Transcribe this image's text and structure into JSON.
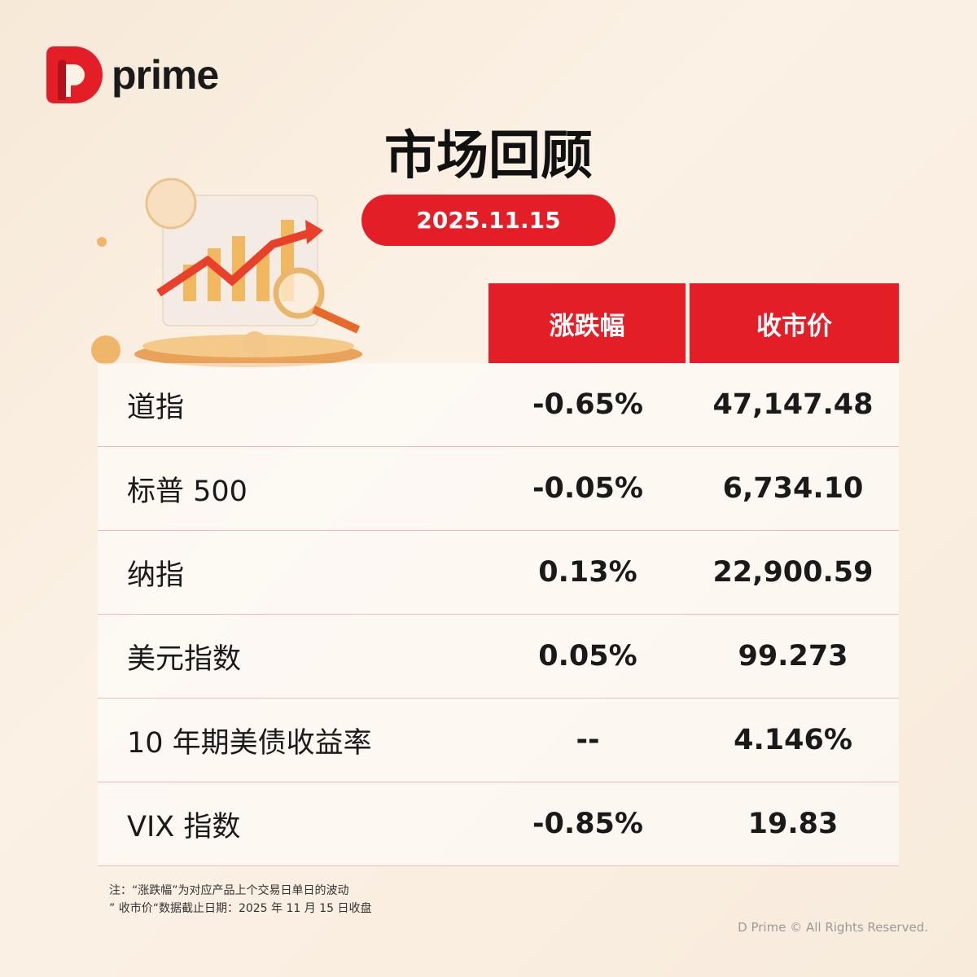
{
  "brand": {
    "name": "prime",
    "primary": "#e41e26"
  },
  "title": "市场回顾",
  "date": "2025.11.15",
  "table": {
    "headers": {
      "change": "涨跌幅",
      "close": "收市价"
    },
    "rows": [
      {
        "name": "道指",
        "change": "-0.65%",
        "close": "47,147.48"
      },
      {
        "name": "标普 500",
        "change": "-0.05%",
        "close": "6,734.10"
      },
      {
        "name": "纳指",
        "change": "0.13%",
        "close": "22,900.59"
      },
      {
        "name": "美元指数",
        "change": "0.05%",
        "close": "99.273"
      },
      {
        "name": "10 年期美债收益率",
        "change": "--",
        "close": "4.146%"
      },
      {
        "name": "VIX 指数",
        "change": "-0.85%",
        "close": "19.83"
      }
    ]
  },
  "notes": [
    "注：“涨跌幅”为对应产品上个交易日单日的波动",
    "” 收市价“数据截止日期：2025 年 11 月 15 日收盘"
  ],
  "copyright": "D Prime © All Rights Reserved."
}
